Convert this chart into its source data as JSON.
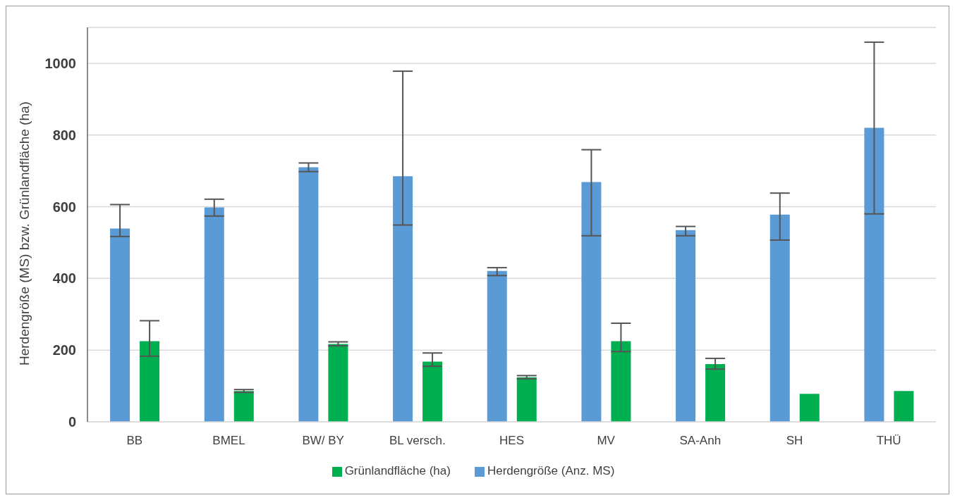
{
  "chart_data": {
    "type": "bar",
    "ylabel": "Herdengröße  (MS) bzw. Grünlandfläche (ha)",
    "categories": [
      "BB",
      "BMEL",
      "BW/ BY",
      "BL versch.",
      "HES",
      "MV",
      "SA-Anh",
      "SH",
      "THÜ"
    ],
    "series": [
      {
        "name": "Herdengröße (Anz. MS)",
        "color": "#5b9bd5",
        "values": [
          539,
          598,
          710,
          685,
          421,
          669,
          535,
          578,
          820
        ],
        "errors": [
          [
            517,
            606
          ],
          [
            574,
            621
          ],
          [
            698,
            722
          ],
          [
            549,
            978
          ],
          [
            408,
            430
          ],
          [
            519,
            759
          ],
          [
            519,
            545
          ],
          [
            507,
            638
          ],
          [
            580,
            1059
          ]
        ]
      },
      {
        "name": "Grünlandfläche (ha)",
        "color": "#00b050",
        "values": [
          225,
          86,
          217,
          168,
          124,
          225,
          161,
          78,
          86
        ],
        "errors": [
          [
            183,
            282
          ],
          [
            82,
            90
          ],
          [
            212,
            223
          ],
          [
            155,
            192
          ],
          [
            120,
            129
          ],
          [
            196,
            275
          ],
          [
            147,
            177
          ],
          null,
          null
        ]
      }
    ],
    "ylim": [
      0,
      1100
    ],
    "yticks": [
      0,
      200,
      400,
      600,
      800,
      1000
    ],
    "grid": "y",
    "legend": "bottom"
  }
}
